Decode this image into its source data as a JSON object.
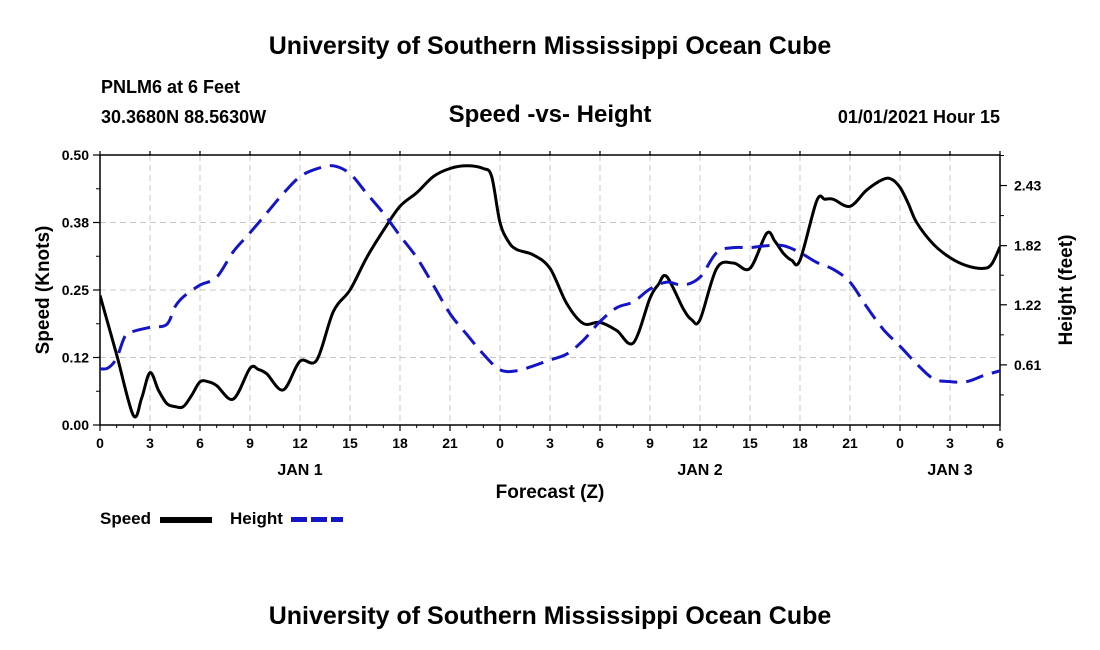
{
  "header": {
    "title": "University of Southern Mississippi Ocean Cube",
    "station": "PNLM6 at 6 Feet",
    "coords": "30.3680N 88.5630W",
    "subtitle": "Speed -vs- Height",
    "datetime": "01/01/2021 Hour 15"
  },
  "footer": {
    "title": "University of Southern Mississippi Ocean Cube"
  },
  "legend": {
    "speed_label": "Speed",
    "height_label": "Height"
  },
  "colors": {
    "speed": "#000000",
    "height": "#1515c8",
    "grid": "#c8c8c8"
  },
  "chart_data": {
    "type": "line",
    "title": "Speed -vs- Height",
    "xlabel": "Forecast (Z)",
    "ylabel": "Speed (Knots)",
    "y2label": "Height (feet)",
    "xlim": [
      0,
      54
    ],
    "ylim": [
      0,
      0.5
    ],
    "y2lim": [
      0,
      2.74
    ],
    "x_ticks": [
      0,
      3,
      6,
      9,
      12,
      15,
      18,
      21,
      24,
      27,
      30,
      33,
      36,
      39,
      42,
      45,
      48,
      51,
      54
    ],
    "x_tick_labels": [
      "0",
      "3",
      "6",
      "9",
      "12",
      "15",
      "18",
      "21",
      "0",
      "3",
      "6",
      "9",
      "12",
      "15",
      "18",
      "21",
      "0",
      "3",
      "6"
    ],
    "date_labels": [
      {
        "x": 12,
        "text": "JAN 1"
      },
      {
        "x": 36,
        "text": "JAN 2"
      },
      {
        "x": 51,
        "text": "JAN 3"
      }
    ],
    "y_ticks": [
      0.0,
      0.125,
      0.25,
      0.375,
      0.5
    ],
    "y_tick_labels": [
      "0.00",
      "0.12",
      "0.25",
      "0.38",
      "0.50"
    ],
    "y2_ticks": [
      0.61,
      1.22,
      1.82,
      2.43
    ],
    "y2_tick_labels": [
      "0.61",
      "1.22",
      "1.82",
      "2.43"
    ],
    "series": [
      {
        "name": "Speed",
        "axis": "left",
        "style": "solid",
        "x": [
          0,
          1,
          2,
          2.5,
          3,
          3.5,
          4,
          4.5,
          5,
          5.5,
          6,
          6.5,
          7,
          8,
          9,
          9.5,
          10,
          11,
          12,
          13,
          14,
          15,
          16,
          17,
          18,
          19,
          20,
          21,
          22,
          23,
          23.5,
          24,
          24.5,
          25,
          26,
          27,
          28,
          29,
          30,
          31,
          32,
          33,
          33.5,
          34,
          35,
          35.5,
          36,
          37,
          38,
          39,
          40,
          40.5,
          41,
          41.5,
          42,
          43,
          43.5,
          44,
          45,
          46,
          47,
          47.5,
          48,
          48.5,
          49,
          50,
          51,
          52,
          53,
          53.5,
          54
        ],
        "y": [
          0.24,
          0.13,
          0.018,
          0.05,
          0.097,
          0.065,
          0.04,
          0.034,
          0.034,
          0.055,
          0.08,
          0.08,
          0.073,
          0.048,
          0.105,
          0.103,
          0.095,
          0.065,
          0.118,
          0.12,
          0.21,
          0.25,
          0.31,
          0.36,
          0.405,
          0.43,
          0.46,
          0.475,
          0.48,
          0.475,
          0.46,
          0.375,
          0.34,
          0.325,
          0.315,
          0.29,
          0.225,
          0.188,
          0.19,
          0.175,
          0.152,
          0.235,
          0.26,
          0.275,
          0.215,
          0.195,
          0.195,
          0.29,
          0.3,
          0.29,
          0.355,
          0.34,
          0.318,
          0.305,
          0.305,
          0.415,
          0.418,
          0.418,
          0.405,
          0.435,
          0.455,
          0.455,
          0.44,
          0.41,
          0.375,
          0.335,
          0.31,
          0.295,
          0.29,
          0.298,
          0.33
        ]
      },
      {
        "name": "Height",
        "axis": "right",
        "style": "dashed",
        "x": [
          0,
          0.5,
          1,
          1.5,
          2,
          3,
          4,
          4.5,
          5,
          6,
          7,
          8,
          9,
          10,
          11,
          12,
          13,
          14,
          15,
          16,
          17,
          18,
          19,
          20,
          21,
          22,
          23,
          24,
          25,
          26,
          27,
          28,
          29,
          30,
          31,
          32,
          33,
          34,
          35,
          36,
          37,
          38,
          39,
          40,
          41,
          42,
          43,
          44,
          45,
          46,
          47,
          48,
          49,
          50,
          51,
          52,
          53,
          54
        ],
        "y": [
          0.57,
          0.58,
          0.68,
          0.9,
          0.95,
          0.99,
          1.02,
          1.2,
          1.3,
          1.42,
          1.5,
          1.76,
          1.95,
          2.15,
          2.35,
          2.52,
          2.6,
          2.63,
          2.55,
          2.35,
          2.15,
          1.92,
          1.7,
          1.42,
          1.13,
          0.92,
          0.72,
          0.56,
          0.55,
          0.6,
          0.66,
          0.72,
          0.86,
          1.05,
          1.19,
          1.25,
          1.38,
          1.45,
          1.42,
          1.5,
          1.75,
          1.8,
          1.8,
          1.82,
          1.82,
          1.75,
          1.65,
          1.58,
          1.45,
          1.2,
          0.97,
          0.8,
          0.62,
          0.47,
          0.44,
          0.44,
          0.5,
          0.55
        ]
      }
    ]
  }
}
